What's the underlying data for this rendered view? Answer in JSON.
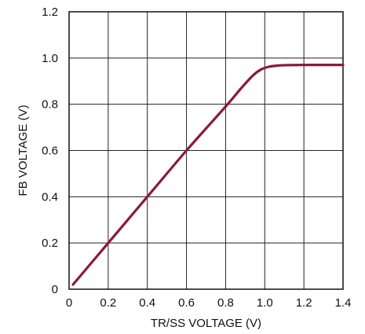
{
  "chart_data": {
    "type": "line",
    "title": "",
    "xlabel": "TR/SS VOLTAGE (V)",
    "ylabel": "FB VOLTAGE (V)",
    "xlim": [
      0,
      1.4
    ],
    "ylim": [
      0,
      1.2
    ],
    "x_ticks": [
      "0",
      "0.2",
      "0.4",
      "0.6",
      "0.8",
      "1.0",
      "1.2",
      "1.4"
    ],
    "y_ticks": [
      "0",
      "0.2",
      "0.4",
      "0.6",
      "0.8",
      "1.0",
      "1.2"
    ],
    "grid": true,
    "line_color": "#8b1a3a",
    "series": [
      {
        "x": [
          0.02,
          0.2,
          0.4,
          0.6,
          0.8,
          0.88,
          0.94,
          0.98,
          1.02,
          1.06,
          1.1,
          1.2,
          1.3,
          1.4
        ],
        "y": [
          0.02,
          0.2,
          0.4,
          0.6,
          0.79,
          0.87,
          0.925,
          0.95,
          0.962,
          0.967,
          0.969,
          0.97,
          0.97,
          0.97
        ]
      }
    ]
  }
}
